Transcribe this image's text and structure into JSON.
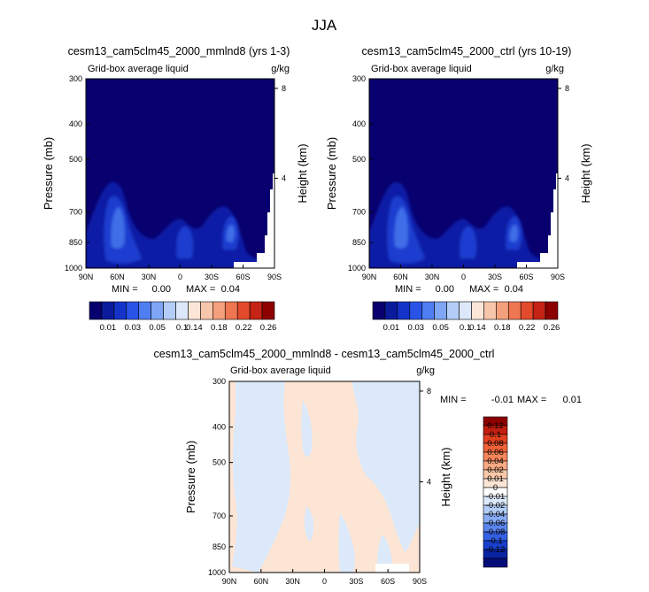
{
  "figure_title": "JJA",
  "chart_data": [
    {
      "type": "heatmap",
      "title": "cesm13_cam5clm45_2000_mmlnd8 (yrs 1-3)",
      "left_label": "Grid-box average liquid",
      "right_label": "g/kg",
      "ylabel": "Pressure (mb)",
      "ylabel_right": "Height (km)",
      "x_ticks": [
        "90N",
        "60N",
        "30N",
        "0",
        "30S",
        "60S",
        "90S"
      ],
      "y_ticks": [
        "300",
        "400",
        "500",
        "700",
        "850",
        "1000"
      ],
      "y_ticks_right": [
        "8",
        "4"
      ],
      "min_label": "MIN =",
      "min_value": "0.00",
      "max_label": "MAX =",
      "max_value": "0.04",
      "colorbar": {
        "orientation": "horizontal",
        "colors": [
          "#08006e",
          "#0a1c9c",
          "#1433c8",
          "#2853e6",
          "#4f7ef2",
          "#7ea6f5",
          "#b3cdf8",
          "#dde9fb",
          "#fde6d8",
          "#f8c6ab",
          "#f4a07c",
          "#ef7650",
          "#e24a2b",
          "#c52315",
          "#8c0000"
        ],
        "labels": [
          "0.01",
          "0.03",
          "0.05",
          "0.1",
          "0.14",
          "0.18",
          "0.22",
          "0.26"
        ]
      }
    },
    {
      "type": "heatmap",
      "title": "cesm13_cam5clm45_2000_ctrl (yrs 10-19)",
      "left_label": "Grid-box average liquid",
      "right_label": "g/kg",
      "ylabel": "Pressure (mb)",
      "ylabel_right": "Height (km)",
      "x_ticks": [
        "90N",
        "60N",
        "30N",
        "0",
        "30S",
        "60S",
        "90S"
      ],
      "y_ticks": [
        "300",
        "400",
        "500",
        "700",
        "850",
        "1000"
      ],
      "y_ticks_right": [
        "8",
        "4"
      ],
      "min_label": "MIN =",
      "min_value": "0.00",
      "max_label": "MAX =",
      "max_value": "0.04",
      "colorbar": {
        "orientation": "horizontal",
        "colors": [
          "#08006e",
          "#0a1c9c",
          "#1433c8",
          "#2853e6",
          "#4f7ef2",
          "#7ea6f5",
          "#b3cdf8",
          "#dde9fb",
          "#fde6d8",
          "#f8c6ab",
          "#f4a07c",
          "#ef7650",
          "#e24a2b",
          "#c52315",
          "#8c0000"
        ],
        "labels": [
          "0.01",
          "0.03",
          "0.05",
          "0.1",
          "0.14",
          "0.18",
          "0.22",
          "0.26"
        ]
      }
    },
    {
      "type": "heatmap",
      "title": "cesm13_cam5clm45_2000_mmlnd8 - cesm13_cam5clm45_2000_ctrl",
      "left_label": "Grid-box average liquid",
      "right_label": "g/kg",
      "ylabel": "Pressure (mb)",
      "ylabel_right": "Height (km)",
      "x_ticks": [
        "90N",
        "60N",
        "30N",
        "0",
        "30S",
        "60S",
        "90S"
      ],
      "y_ticks": [
        "300",
        "400",
        "500",
        "700",
        "850",
        "1000"
      ],
      "y_ticks_right": [
        "8",
        "4"
      ],
      "min_label": "MIN =",
      "min_value": "-0.01",
      "max_label": "MAX =",
      "max_value": "0.01",
      "colorbar": {
        "orientation": "vertical",
        "colors": [
          "#8c0000",
          "#c41e10",
          "#e0401f",
          "#f06238",
          "#f7865c",
          "#f9a982",
          "#fbc8a9",
          "#fde5d5",
          "#ffffff",
          "#dbe9fb",
          "#b3cdf8",
          "#87abf4",
          "#5b85ee",
          "#3360e4",
          "#1a3fcb",
          "#0a23a3",
          "#050c7a"
        ],
        "labels": [
          "0.12",
          "0.1",
          "0.08",
          "0.06",
          "0.04",
          "0.02",
          "0.01",
          "0",
          "-0.01",
          "-0.02",
          "-0.04",
          "-0.06",
          "-0.08",
          "-0.1",
          "-0.12"
        ]
      }
    }
  ]
}
